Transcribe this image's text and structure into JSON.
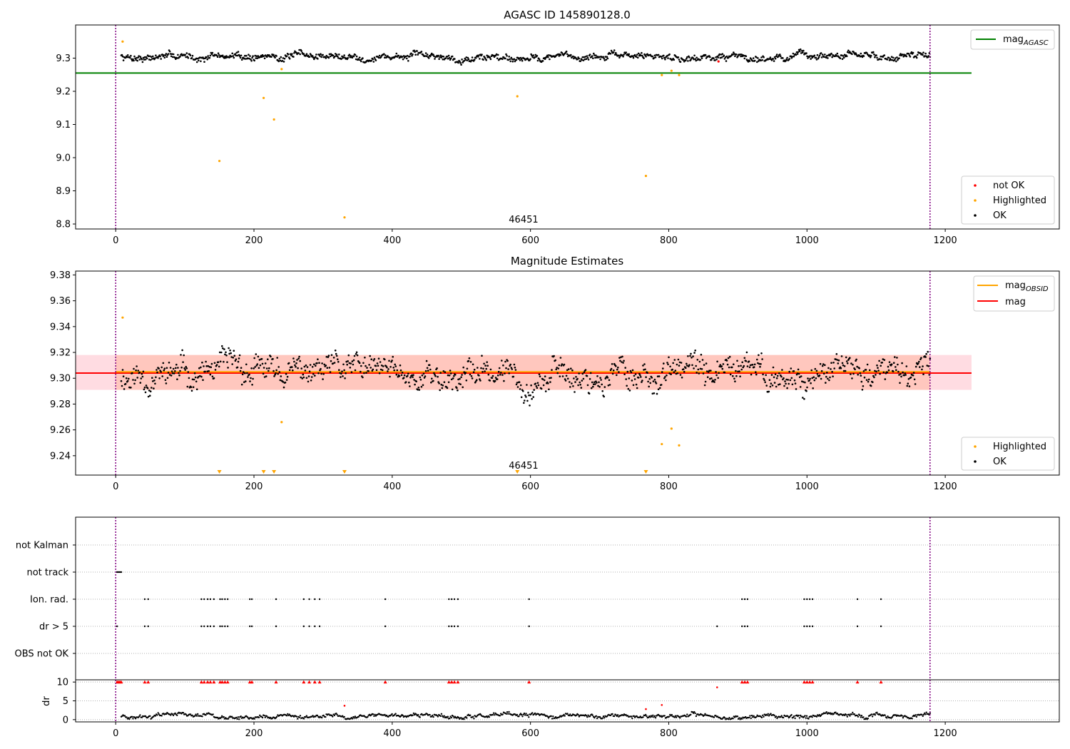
{
  "chart_data": [
    {
      "type": "scatter",
      "title": "AGASC ID 145890128.0",
      "xlim": [
        -58,
        1365
      ],
      "ylim": [
        8.785,
        9.4
      ],
      "xticks": [
        0,
        200,
        400,
        600,
        800,
        1000,
        1200
      ],
      "yticks": [
        8.8,
        8.9,
        9.0,
        9.1,
        9.2,
        9.3
      ],
      "obsid_label": "46451",
      "obsid_label_x": 590,
      "obsid_boundaries_x": [
        0,
        1178
      ],
      "ok_series": {
        "name": "OK",
        "color": "#000000",
        "baseline": 9.305,
        "amplitude": 0.03,
        "x_range": [
          8,
          1178
        ],
        "count": 1100
      },
      "not_ok_points": [
        {
          "x": 872,
          "y": 9.29
        }
      ],
      "highlighted_points": [
        {
          "x": 10,
          "y": 9.35
        },
        {
          "x": 150,
          "y": 8.99
        },
        {
          "x": 214,
          "y": 9.18
        },
        {
          "x": 229,
          "y": 9.115
        },
        {
          "x": 240,
          "y": 9.267
        },
        {
          "x": 331,
          "y": 8.82
        },
        {
          "x": 581,
          "y": 9.185
        },
        {
          "x": 767,
          "y": 8.945
        },
        {
          "x": 790,
          "y": 9.249
        },
        {
          "x": 804,
          "y": 9.262
        },
        {
          "x": 815,
          "y": 9.249
        }
      ],
      "mag_agasc_line": {
        "y": 9.255,
        "x_range": [
          -58,
          1238
        ],
        "color": "#008000"
      },
      "legend_lines": [
        {
          "label_main": "mag",
          "label_sub": "AGASC",
          "color": "#008000"
        }
      ],
      "legend_points": [
        {
          "label": "not OK",
          "color": "#ff0000"
        },
        {
          "label": "Highlighted",
          "color": "#ffa500"
        },
        {
          "label": "OK",
          "color": "#000000"
        }
      ]
    },
    {
      "type": "scatter",
      "title": "Magnitude Estimates",
      "xlim": [
        -58,
        1365
      ],
      "ylim": [
        9.225,
        9.383
      ],
      "xticks": [
        0,
        200,
        400,
        600,
        800,
        1000,
        1200
      ],
      "yticks": [
        9.24,
        9.26,
        9.28,
        9.3,
        9.32,
        9.34,
        9.36,
        9.38
      ],
      "obsid_label": "46451",
      "obsid_label_x": 590,
      "obsid_boundaries_x": [
        0,
        1178
      ],
      "mag": 9.304,
      "mag_band": [
        9.291,
        9.318
      ],
      "mag_obsid": 9.305,
      "ok_series": {
        "name": "OK",
        "color": "#000000",
        "baseline": 9.303,
        "amplitude": 0.03,
        "x_range": [
          8,
          1178
        ],
        "count": 1100
      },
      "highlighted_points": [
        {
          "x": 10,
          "y": 9.347
        },
        {
          "x": 240,
          "y": 9.266
        },
        {
          "x": 790,
          "y": 9.249
        },
        {
          "x": 804,
          "y": 9.261
        },
        {
          "x": 815,
          "y": 9.248
        }
      ],
      "highlighted_offscale_x": [
        150,
        214,
        229,
        331,
        581,
        767
      ],
      "legend_lines": [
        {
          "label_main": "mag",
          "label_sub": "OBSID",
          "color": "#ffa500"
        },
        {
          "label_main": "mag",
          "label_sub": "",
          "color": "#ff0000"
        }
      ],
      "legend_points": [
        {
          "label": "Highlighted",
          "color": "#ffa500"
        },
        {
          "label": "OK",
          "color": "#000000"
        }
      ]
    },
    {
      "type": "scatter",
      "xlim": [
        -58,
        1365
      ],
      "xticks": [
        0,
        200,
        400,
        600,
        800,
        1000,
        1200
      ],
      "obsid_boundaries_x": [
        0,
        1178
      ],
      "flag_categories": [
        "not Kalman",
        "not track",
        "Ion. rad.",
        "dr > 5",
        "OBS not OK"
      ],
      "flag_points": {
        "not track": [
          2,
          4,
          6,
          8
        ],
        "Ion. rad.": [
          42,
          47,
          124,
          128,
          133,
          137,
          142,
          151,
          154,
          158,
          162,
          194,
          197,
          232,
          272,
          280,
          288,
          295,
          390,
          482,
          486,
          490,
          495,
          598,
          906,
          910,
          914,
          996,
          1000,
          1004,
          1008,
          1073,
          1107
        ],
        "dr > 5": [
          2,
          42,
          47,
          124,
          128,
          133,
          137,
          142,
          151,
          154,
          158,
          162,
          194,
          197,
          232,
          272,
          280,
          288,
          295,
          390,
          482,
          486,
          490,
          495,
          598,
          870,
          906,
          910,
          914,
          996,
          1000,
          1004,
          1008,
          1073,
          1107
        ]
      },
      "dr": {
        "ylabel": "dr",
        "yticks": [
          0,
          5,
          10
        ],
        "ylim": [
          -0.6,
          10.6
        ],
        "clip_value": 10,
        "clipped_x": [
          2,
          4,
          6,
          8,
          42,
          47,
          124,
          128,
          133,
          137,
          142,
          151,
          154,
          158,
          162,
          194,
          197,
          232,
          272,
          280,
          288,
          295,
          390,
          482,
          486,
          490,
          495,
          598,
          906,
          910,
          914,
          996,
          1000,
          1004,
          1008,
          1073,
          1107
        ],
        "extra_red_points": [
          {
            "x": 331,
            "y": 3.7
          },
          {
            "x": 767,
            "y": 2.8
          },
          {
            "x": 790,
            "y": 3.9
          },
          {
            "x": 870,
            "y": 8.6
          }
        ],
        "baseline": 1.0
      }
    }
  ]
}
